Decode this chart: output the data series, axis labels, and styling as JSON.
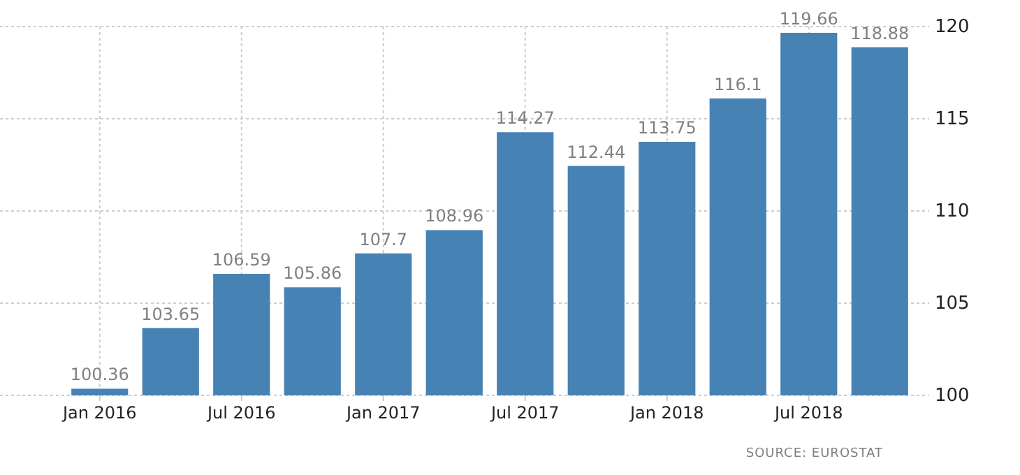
{
  "chart_data": {
    "type": "bar",
    "categories": [
      "Jan 2016",
      null,
      "Jul 2016",
      null,
      "Jan 2017",
      null,
      "Jul 2017",
      null,
      "Jan 2018",
      null,
      "Jul 2018",
      null
    ],
    "values": [
      100.36,
      103.65,
      106.59,
      105.86,
      107.7,
      108.96,
      114.27,
      112.44,
      113.75,
      116.1,
      119.66,
      118.88
    ],
    "color": "#4682b4",
    "ylim": [
      100,
      120
    ],
    "yticks": [
      100,
      105,
      110,
      115,
      120
    ],
    "grid": true,
    "data_labels": true,
    "annotations": [
      "SOURCE: EUROSTAT"
    ]
  }
}
